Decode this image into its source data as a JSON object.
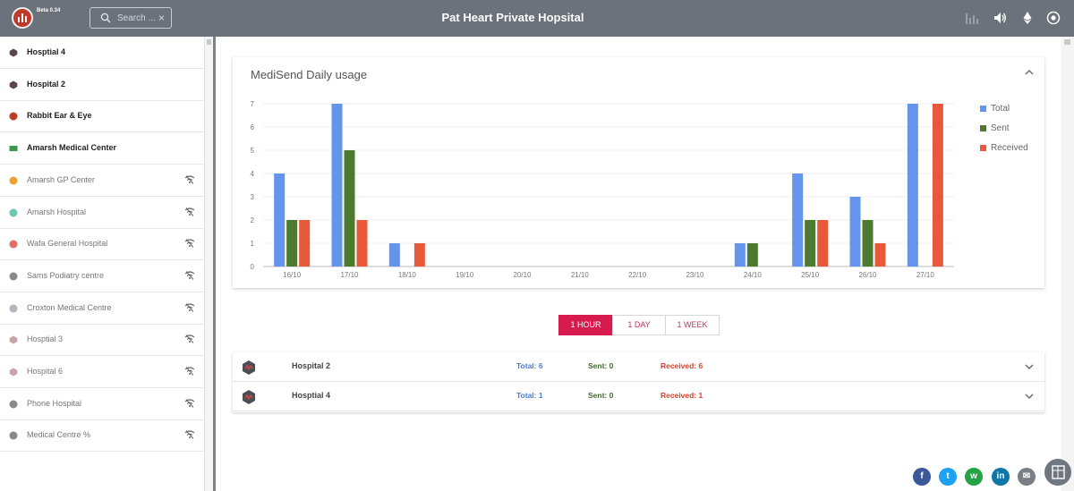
{
  "header": {
    "beta_label": "Beta 0.34",
    "search_placeholder": "Search ...",
    "search_clear": "×",
    "title": "Pat Heart Private Hopsital",
    "icons": [
      "bar-chart-icon",
      "speaker-icon",
      "ethereum-icon",
      "eye-icon"
    ]
  },
  "sidebar": {
    "items": [
      {
        "label": "Hosptial 4",
        "icon": "hexagon-logo-icon",
        "online": true
      },
      {
        "label": "Hospital 2",
        "icon": "hexagon-logo-icon",
        "online": true
      },
      {
        "label": "Rabbit Ear & Eye",
        "icon": "rabbit-logo-icon",
        "online": true
      },
      {
        "label": "Amarsh Medical Center",
        "icon": "green-logo-icon",
        "online": true
      },
      {
        "label": "Amarsh GP Center",
        "icon": "orange-logo-icon",
        "online": false
      },
      {
        "label": "Amarsh Hospital",
        "icon": "teal-logo-icon",
        "online": false
      },
      {
        "label": "Wafa General Hospital",
        "icon": "red-circle-logo-icon",
        "online": false
      },
      {
        "label": "Sams Podiatry centre",
        "icon": "grey-dot-icon",
        "online": false
      },
      {
        "label": "Croxton Medical Centre",
        "icon": "people-logo-icon",
        "online": false
      },
      {
        "label": "Hosptial 3",
        "icon": "hexagon-logo-icon",
        "online": false
      },
      {
        "label": "Hospital 6",
        "icon": "hexagon-logo-icon",
        "online": false
      },
      {
        "label": "Phone Hospital",
        "icon": "grey-dot-icon",
        "online": false
      },
      {
        "label": "Medical Centre %",
        "icon": "grey-dot-icon",
        "online": false
      }
    ]
  },
  "card": {
    "title": "MediSend Daily usage"
  },
  "chart_data": {
    "type": "bar",
    "categories": [
      "16/10",
      "17/10",
      "18/10",
      "19/10",
      "20/10",
      "21/10",
      "22/10",
      "23/10",
      "24/10",
      "25/10",
      "26/10",
      "27/10"
    ],
    "series": [
      {
        "name": "Total",
        "color": "#6495ed",
        "values": [
          4,
          7,
          1,
          0,
          0,
          0,
          0,
          0,
          1,
          4,
          3,
          7
        ]
      },
      {
        "name": "Sent",
        "color": "#4c7a2e",
        "values": [
          2,
          5,
          0,
          0,
          0,
          0,
          0,
          0,
          1,
          2,
          2,
          0
        ]
      },
      {
        "name": "Received",
        "color": "#e8583a",
        "values": [
          2,
          2,
          1,
          0,
          0,
          0,
          0,
          0,
          0,
          2,
          1,
          7
        ]
      }
    ],
    "y_ticks": [
      "0",
      "1",
      "2",
      "3",
      "4",
      "5",
      "6",
      "7"
    ],
    "ylim": [
      0,
      7
    ],
    "grid": true,
    "legend": "right"
  },
  "range_toggle": {
    "options": [
      "1 HOUR",
      "1 DAY",
      "1 WEEK"
    ],
    "selected": "1 HOUR"
  },
  "hospitals": [
    {
      "name": "Hospital 2",
      "total": "Total: 6",
      "sent": "Sent: 0",
      "received": "Received: 6"
    },
    {
      "name": "Hosptial 4",
      "total": "Total: 1",
      "sent": "Sent: 0",
      "received": "Received: 1"
    }
  ],
  "share": {
    "buttons": [
      {
        "name": "facebook",
        "glyph": "f",
        "color": "#3b5998"
      },
      {
        "name": "twitter",
        "glyph": "t",
        "color": "#1da1f2"
      },
      {
        "name": "whatsapp",
        "glyph": "w",
        "color": "#25a244"
      },
      {
        "name": "linkedin",
        "glyph": "in",
        "color": "#0e76a8"
      },
      {
        "name": "email",
        "glyph": "✉",
        "color": "#7a7f85"
      }
    ]
  }
}
